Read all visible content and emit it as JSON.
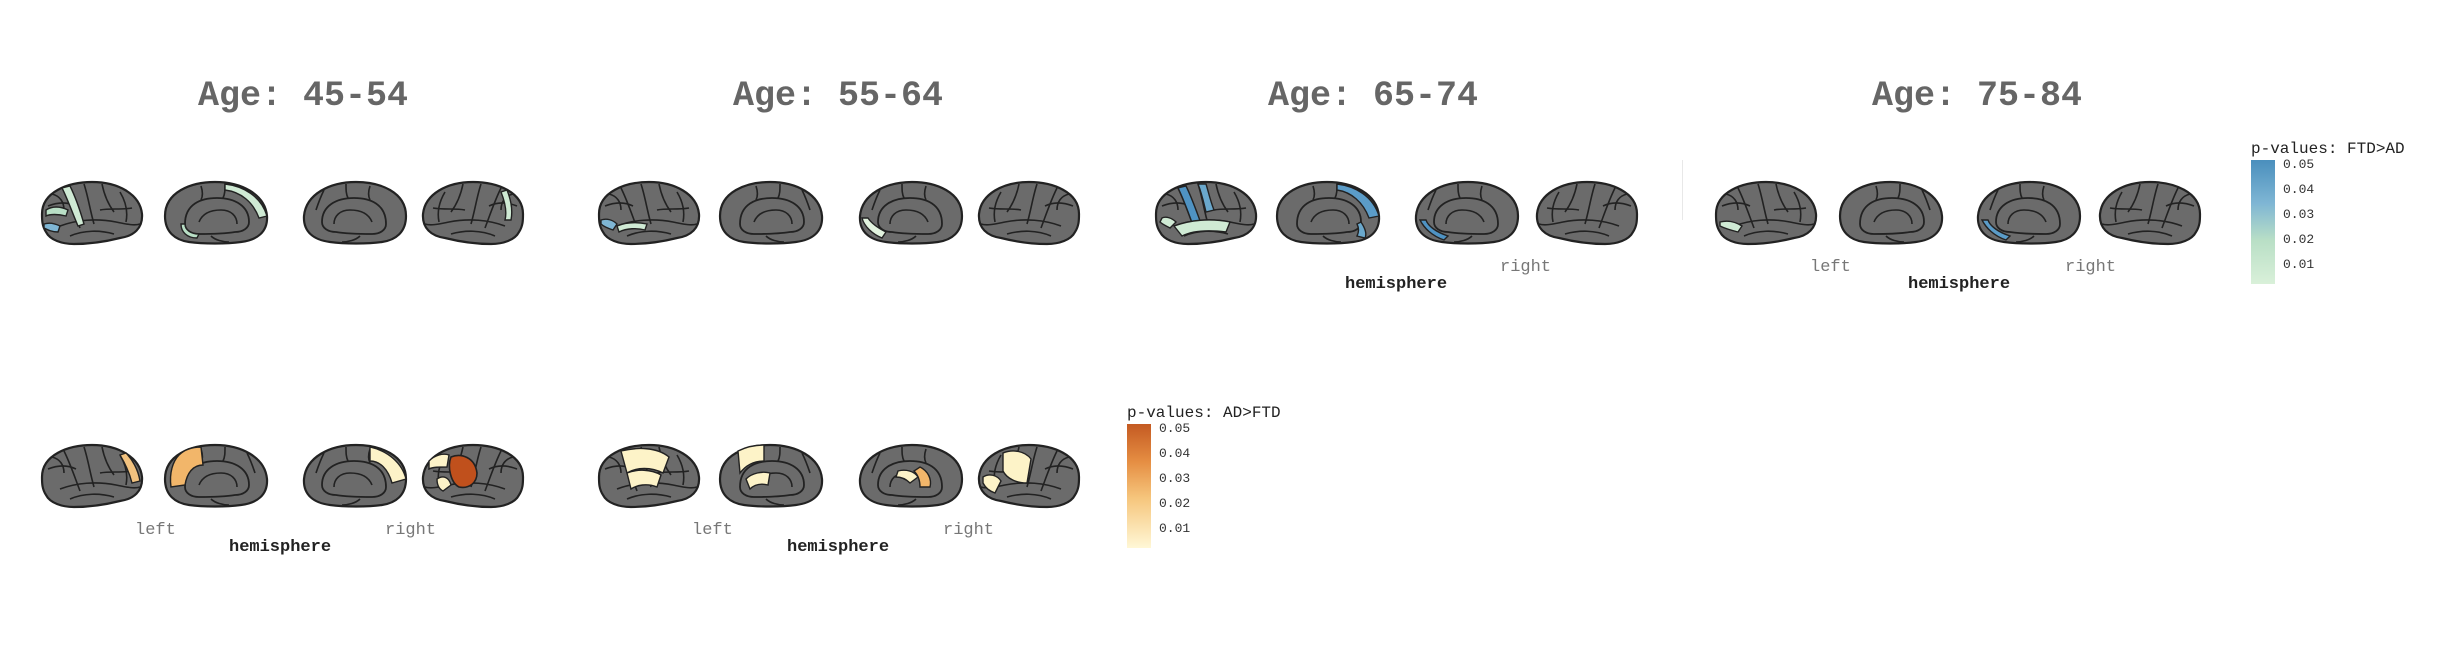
{
  "panels": {
    "titles": [
      "Age: 45-54",
      "Age: 55-64",
      "Age: 65-74",
      "Age: 75-84"
    ],
    "left_label": "left",
    "right_label": "right",
    "hemisphere_label": "hemisphere"
  },
  "legends": {
    "ftd": {
      "title": "p-values: FTD>AD",
      "ticks": [
        "0.05",
        "0.04",
        "0.03",
        "0.02",
        "0.01"
      ],
      "color_high": "#4a8fbd",
      "color_low": "#d9f0d9"
    },
    "ad": {
      "title": "p-values: AD>FTD",
      "ticks": [
        "0.05",
        "0.04",
        "0.03",
        "0.02",
        "0.01"
      ],
      "color_high": "#c45a22",
      "color_low": "#fff7d6"
    }
  },
  "colors": {
    "brain_gray": "#6b6b6b",
    "outline": "#222222",
    "blue": "#4f93c3",
    "light_green": "#cfead4",
    "mint": "#b9dfc6",
    "light_yellow": "#fdf3c8",
    "orange": "#f2b66a",
    "dark_orange": "#c0501c"
  }
}
